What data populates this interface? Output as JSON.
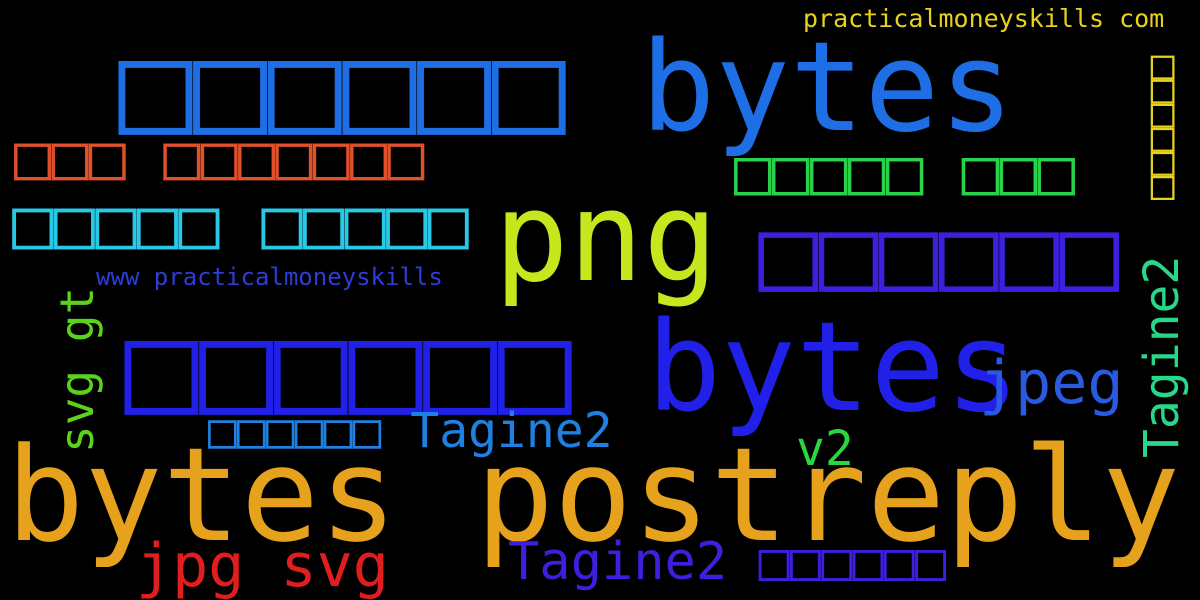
{
  "word_cloud": {
    "background": "#000000",
    "words": [
      {
        "text": "□□□□□□ bytes",
        "color": "#1e6ee6"
      },
      {
        "text": "practicalmoneyskills com",
        "color": "#e8d21e"
      },
      {
        "text": "□□□ □□□□□□□",
        "color": "#e0502a"
      },
      {
        "text": "png",
        "color": "#c8e61e"
      },
      {
        "text": "□□□□□ □□□",
        "color": "#2ad24a"
      },
      {
        "text": "□□□□□□",
        "color": "#e8d21e"
      },
      {
        "text": "□□□□□ □□□□□",
        "color": "#28c8e6"
      },
      {
        "text": "□□□□□□",
        "color": "#3c20e0"
      },
      {
        "text": "www practicalmoneyskills",
        "color": "#2c3ed8"
      },
      {
        "text": "svg gt",
        "color": "#5ad21e"
      },
      {
        "text": "□□□□□□ bytes",
        "color": "#2020e8"
      },
      {
        "text": "Tagine2",
        "color": "#28d88a"
      },
      {
        "text": "jpeg",
        "color": "#2a5ae0"
      },
      {
        "text": "□□□□□□ Tagine2",
        "color": "#1e80e0"
      },
      {
        "text": "v2",
        "color": "#28d83c"
      },
      {
        "text": "bytes postreply",
        "color": "#e6a21c"
      },
      {
        "text": "jpg svg",
        "color": "#e01e1e"
      },
      {
        "text": "Tagine2 □□□□□□",
        "color": "#3c20e0"
      }
    ]
  }
}
